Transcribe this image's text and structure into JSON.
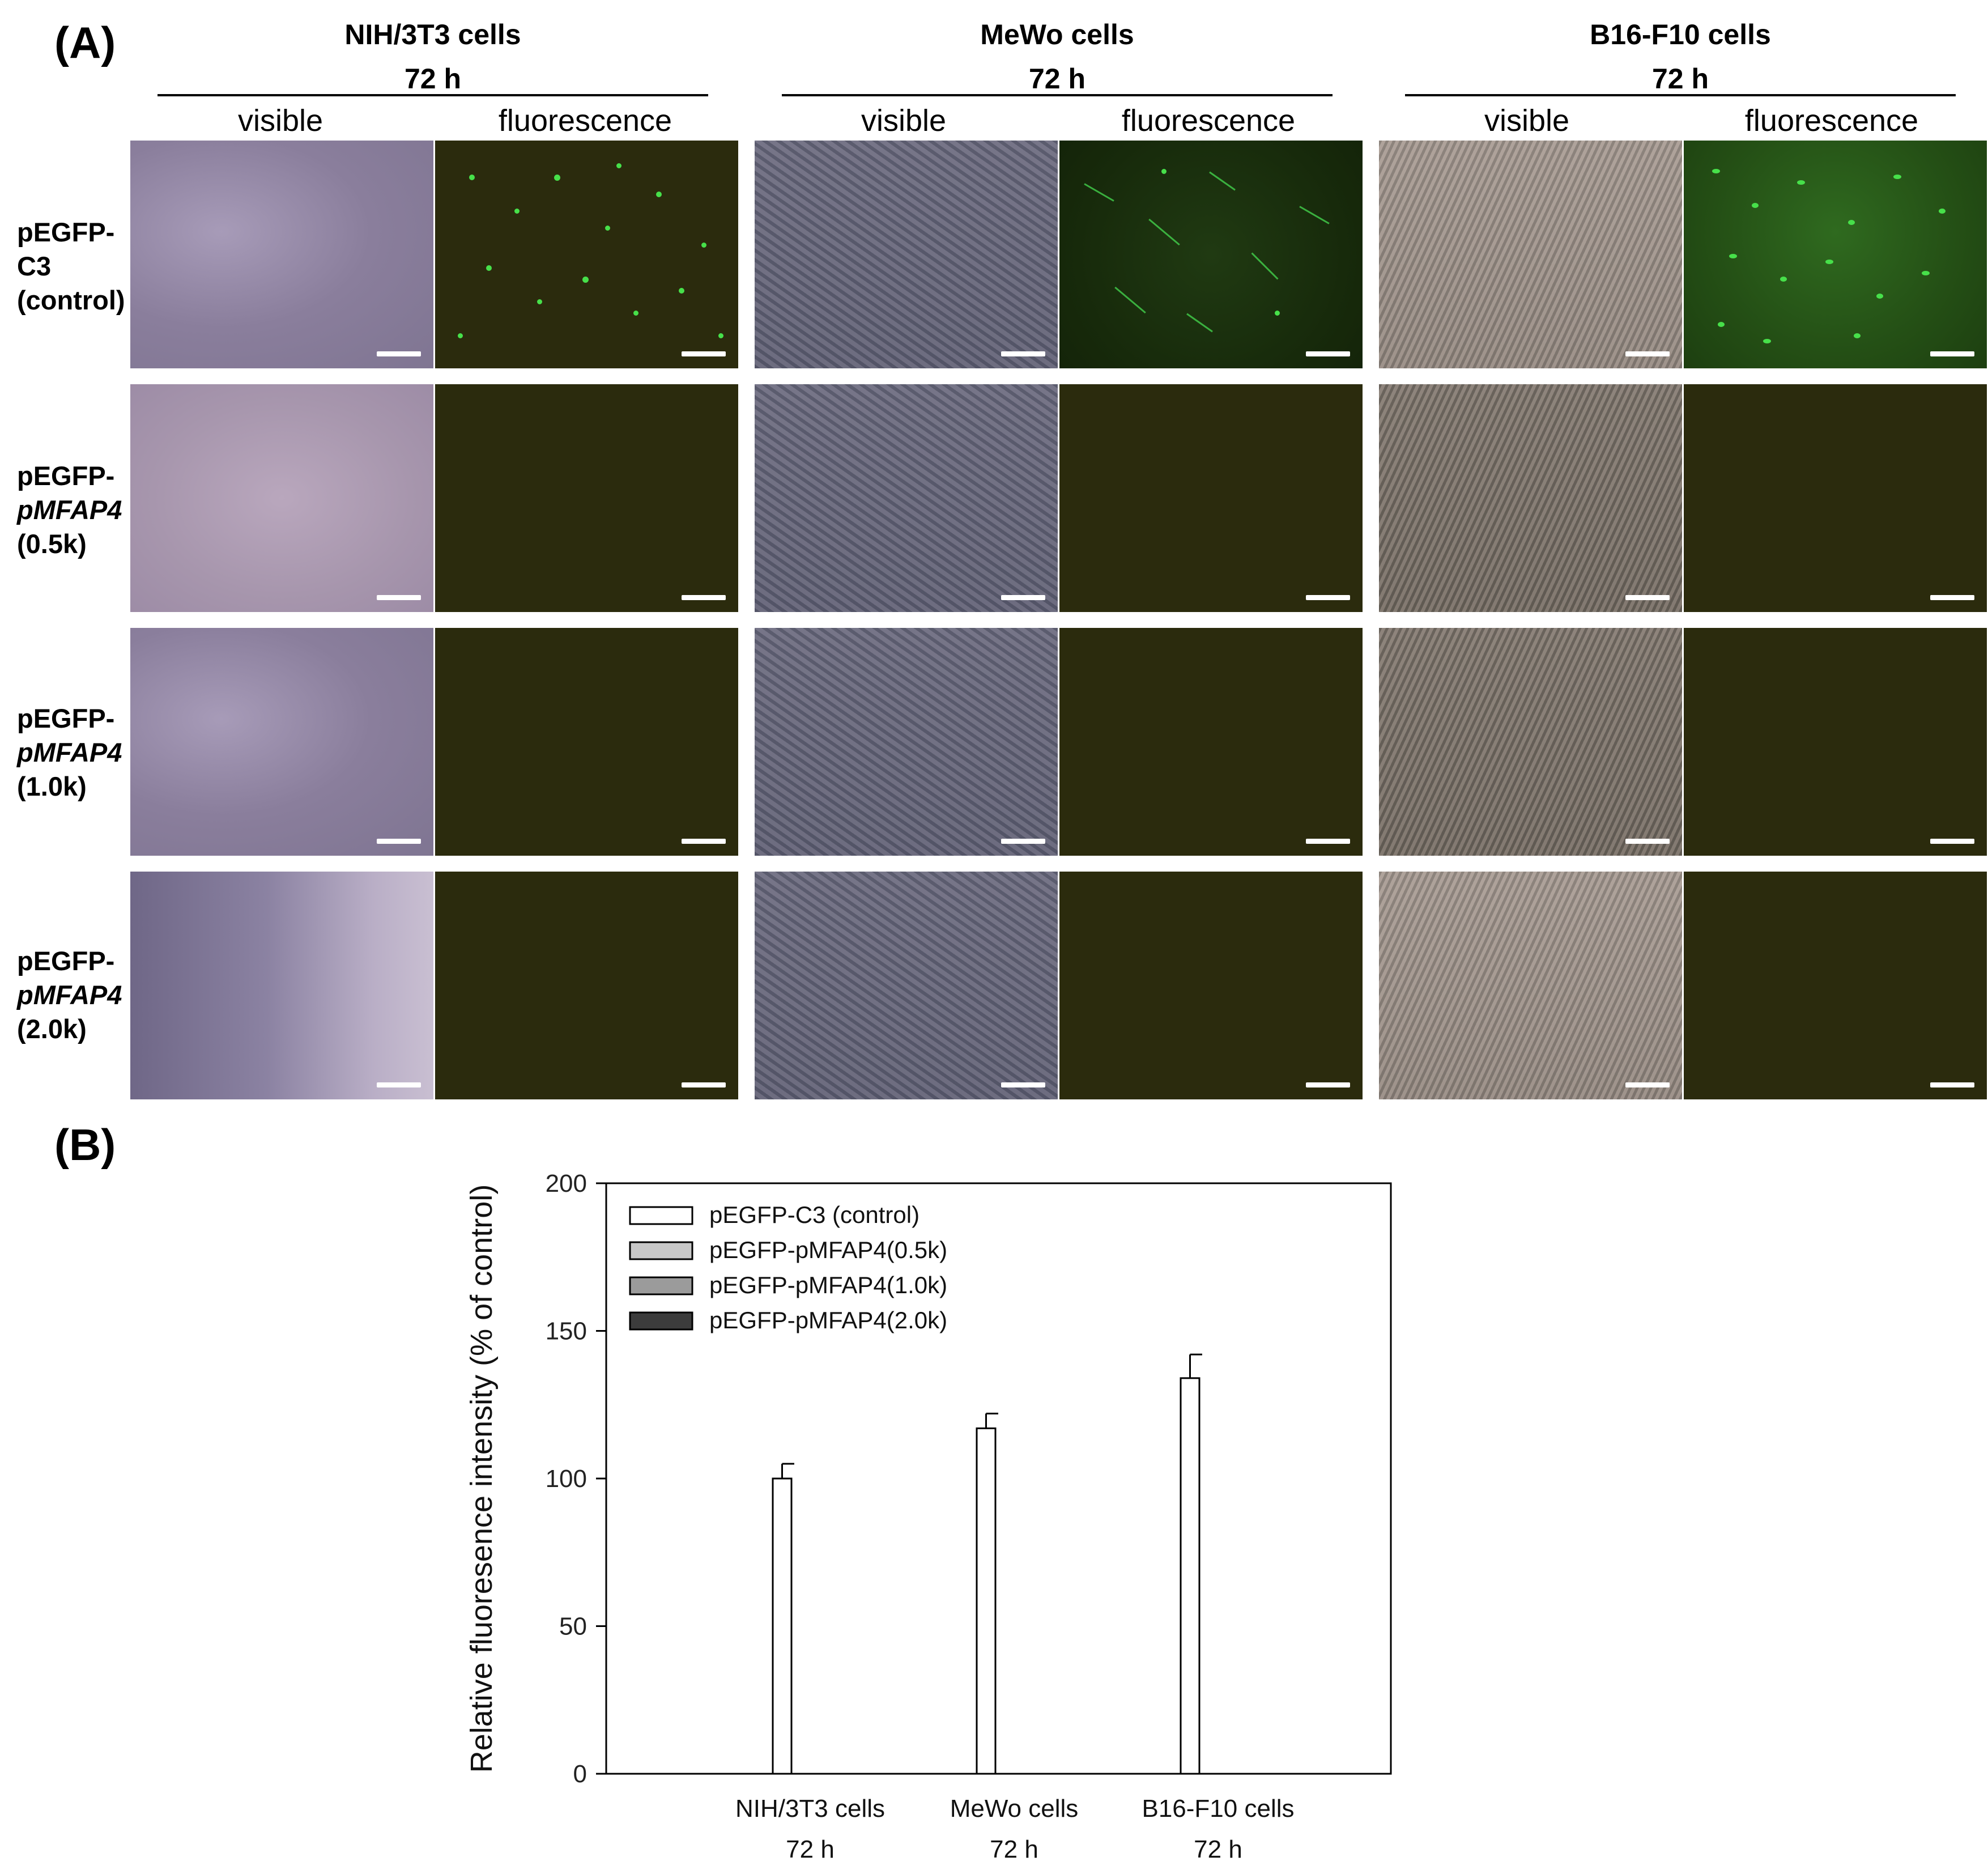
{
  "panel_a": {
    "label": "(A)",
    "groups": [
      {
        "title": "NIH/3T3 cells",
        "time": "72 h"
      },
      {
        "title": "MeWo cells",
        "time": "72 h"
      },
      {
        "title": "B16-F10 cells",
        "time": "72 h"
      }
    ],
    "sub_labels": {
      "visible": "visible",
      "fluorescence": "fluorescence"
    },
    "rows": [
      {
        "line1": "pEGFP-",
        "line2": "C3",
        "line3": "(control)"
      },
      {
        "line1": "pEGFP-",
        "line2": "pMFAP4",
        "line3": "(0.5k)"
      },
      {
        "line1": "pEGFP-",
        "line2": "pMFAP4",
        "line3": "(1.0k)"
      },
      {
        "line1": "pEGFP-",
        "line2": "pMFAP4",
        "line3": "(2.0k)"
      }
    ]
  },
  "panel_b": {
    "label": "(B)"
  },
  "chart_data": {
    "type": "bar",
    "ylabel": "Relative fluoresence intensity (% of control)",
    "ylim": [
      0,
      200
    ],
    "yticks": [
      0,
      50,
      100,
      150,
      200
    ],
    "categories": [
      {
        "line1": "NIH/3T3 cells",
        "line2": "72 h"
      },
      {
        "line1": "MeWo cells",
        "line2": "72 h"
      },
      {
        "line1": "B16-F10 cells",
        "line2": "72 h"
      }
    ],
    "series": [
      {
        "name": "pEGFP-C3 (control)",
        "color": "#ffffff",
        "values": [
          100,
          117,
          134
        ],
        "errors": [
          5,
          5,
          8
        ]
      },
      {
        "name": "pEGFP-pMFAP4(0.5k)",
        "color": "#c8c8c8",
        "values": [
          0,
          0,
          0
        ],
        "errors": [
          0,
          0,
          0
        ]
      },
      {
        "name": "pEGFP-pMFAP4(1.0k)",
        "color": "#9b9b9b",
        "values": [
          0,
          0,
          0
        ],
        "errors": [
          0,
          0,
          0
        ]
      },
      {
        "name": "pEGFP-pMFAP4(2.0k)",
        "color": "#3c3c3c",
        "values": [
          0,
          0,
          0
        ],
        "errors": [
          0,
          0,
          0
        ]
      }
    ],
    "legend_position": "top-left",
    "grid": false
  }
}
